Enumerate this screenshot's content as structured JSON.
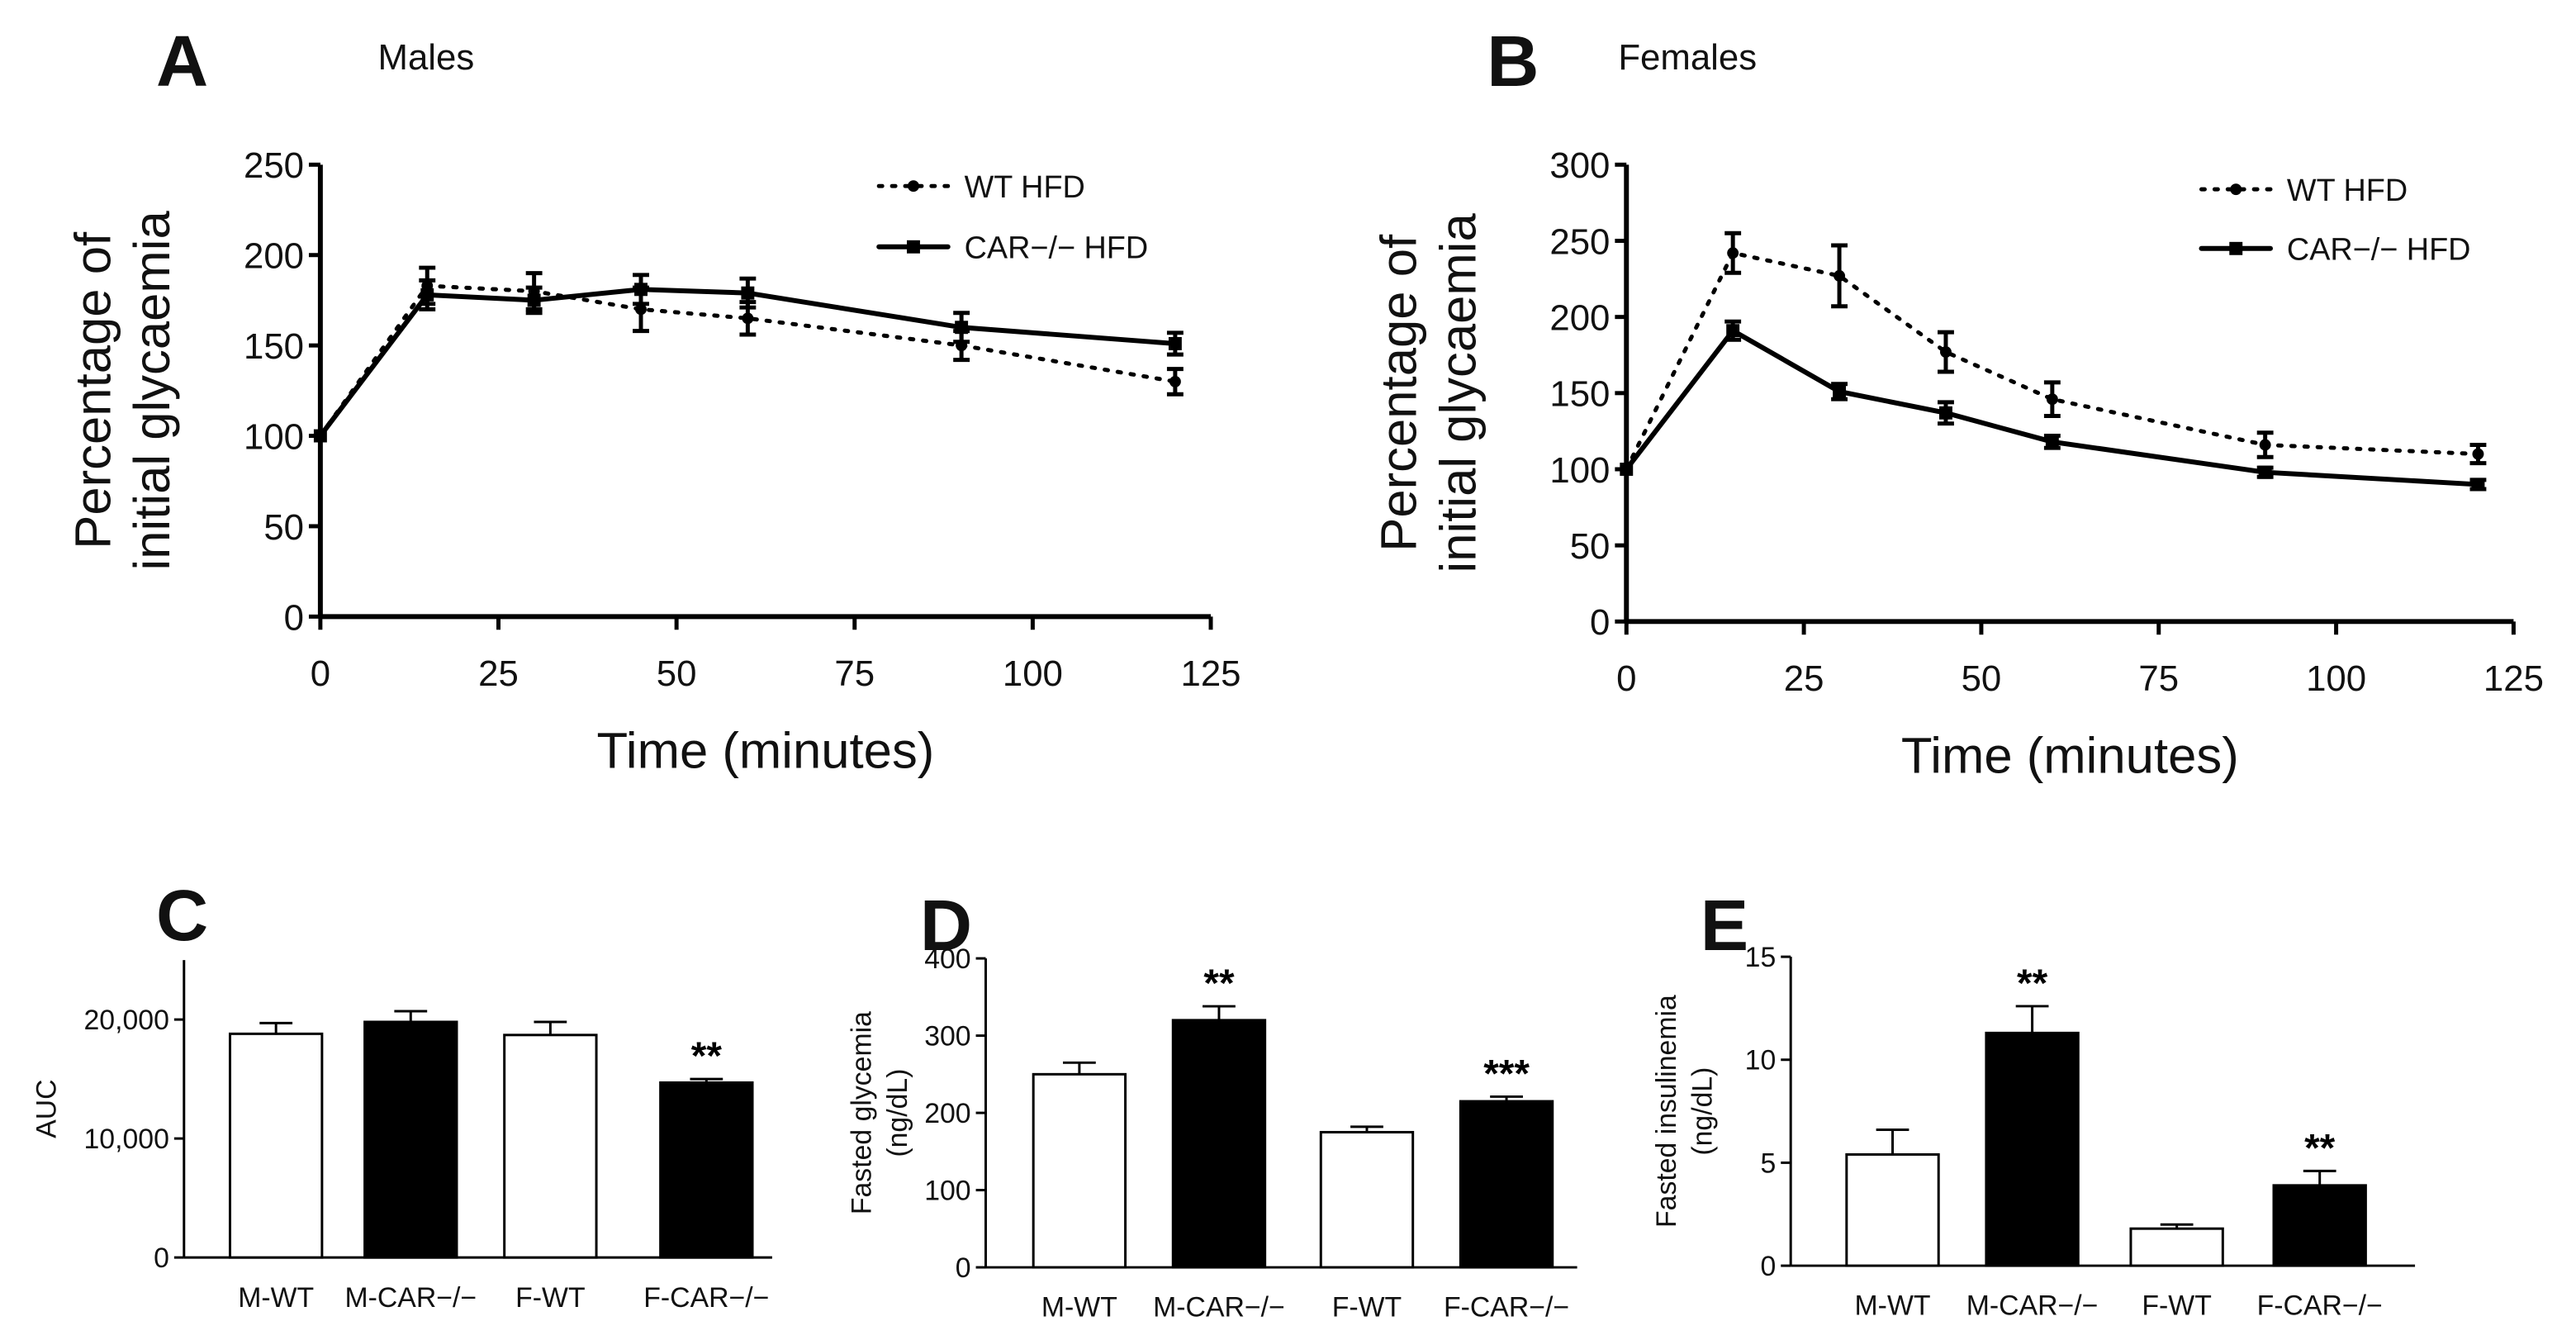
{
  "chart_data": [
    {
      "panel": "A",
      "title": "Males",
      "type": "line",
      "xlabel": "Time (minutes)",
      "ylabel": [
        "Percentage of",
        "initial glycaemia"
      ],
      "xlim": [
        0,
        125
      ],
      "ylim": [
        0,
        250
      ],
      "xticks": [
        0,
        25,
        50,
        75,
        100,
        125
      ],
      "yticks": [
        0,
        50,
        100,
        150,
        200,
        250
      ],
      "legend_position": "top-right",
      "x": [
        0,
        15,
        30,
        45,
        60,
        90,
        120
      ],
      "series": [
        {
          "name": "WT HFD",
          "style": "dotted",
          "values": [
            100,
            183,
            180,
            170,
            165,
            150,
            130
          ],
          "errors": [
            0,
            10,
            10,
            12,
            9,
            8,
            7
          ]
        },
        {
          "name": "CAR−/− HFD",
          "style": "solid",
          "values": [
            100,
            178,
            175,
            181,
            179,
            160,
            151
          ],
          "errors": [
            0,
            8,
            7,
            8,
            8,
            8,
            6
          ]
        }
      ]
    },
    {
      "panel": "B",
      "title": "Females",
      "type": "line",
      "xlabel": "Time (minutes)",
      "ylabel": [
        "Percentage of",
        "initial glycaemia"
      ],
      "xlim": [
        0,
        125
      ],
      "ylim": [
        0,
        300
      ],
      "xticks": [
        0,
        25,
        50,
        75,
        100,
        125
      ],
      "yticks": [
        0,
        50,
        100,
        150,
        200,
        250,
        300
      ],
      "legend_position": "top-right",
      "x": [
        0,
        15,
        30,
        45,
        60,
        90,
        120
      ],
      "series": [
        {
          "name": "WT HFD",
          "style": "dotted",
          "values": [
            100,
            242,
            227,
            177,
            146,
            116,
            110
          ],
          "errors": [
            0,
            13,
            20,
            13,
            11,
            8,
            6
          ]
        },
        {
          "name": "CAR−/− HFD",
          "style": "solid",
          "values": [
            100,
            191,
            151,
            137,
            118,
            98,
            90
          ],
          "errors": [
            0,
            6,
            5,
            7,
            4,
            3,
            3
          ]
        }
      ]
    },
    {
      "panel": "C",
      "type": "bar",
      "ylabel": [
        "AUC"
      ],
      "ylim": [
        0,
        25000
      ],
      "yticks": [
        0,
        10000,
        20000
      ],
      "ytick_labels": [
        "0",
        "10,000",
        "20,000"
      ],
      "categories": [
        "M-WT",
        "M-CAR−/−",
        "F-WT",
        "F-CAR−/−"
      ],
      "values": [
        18800,
        19800,
        18700,
        14700
      ],
      "errors": [
        900,
        900,
        1100,
        300
      ],
      "fills": [
        "#ffffff",
        "#000000",
        "#ffffff",
        "#000000"
      ],
      "annotations": [
        "",
        "",
        "",
        "**"
      ]
    },
    {
      "panel": "D",
      "type": "bar",
      "ylabel": [
        "Fasted glycemia",
        "(ng/dL)"
      ],
      "ylim": [
        0,
        400
      ],
      "yticks": [
        0,
        100,
        200,
        300,
        400
      ],
      "ytick_labels": [
        "0",
        "100",
        "200",
        "300",
        "400"
      ],
      "categories": [
        "M-WT",
        "M-CAR−/−",
        "F-WT",
        "F-CAR−/−"
      ],
      "values": [
        250,
        320,
        175,
        215
      ],
      "errors": [
        15,
        18,
        7,
        6
      ],
      "fills": [
        "#ffffff",
        "#000000",
        "#ffffff",
        "#000000"
      ],
      "annotations": [
        "",
        "**",
        "",
        "***"
      ]
    },
    {
      "panel": "E",
      "type": "bar",
      "ylabel": [
        "Fasted insulinemia",
        "(ng/dL)"
      ],
      "ylim": [
        0,
        15
      ],
      "yticks": [
        0,
        5,
        10,
        15
      ],
      "ytick_labels": [
        "0",
        "5",
        "10",
        "15"
      ],
      "categories": [
        "M-WT",
        "M-CAR−/−",
        "F-WT",
        "F-CAR−/−"
      ],
      "values": [
        5.4,
        11.3,
        1.8,
        3.9
      ],
      "errors": [
        1.2,
        1.3,
        0.2,
        0.7
      ],
      "fills": [
        "#ffffff",
        "#000000",
        "#ffffff",
        "#000000"
      ],
      "annotations": [
        "",
        "**",
        "",
        "**"
      ]
    }
  ]
}
